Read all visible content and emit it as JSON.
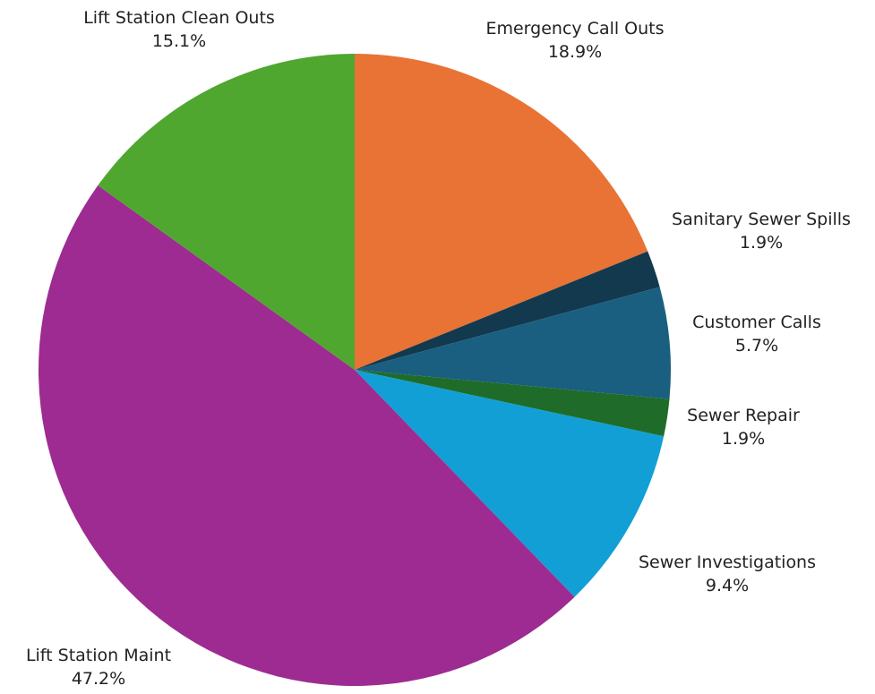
{
  "chart_data": {
    "type": "pie",
    "title": "",
    "legend": "none",
    "start_angle_deg": 0,
    "direction": "clockwise",
    "slices": [
      {
        "label": "Emergency Call Outs",
        "value": 18.9,
        "display": "18.9%",
        "color": "#E87334"
      },
      {
        "label": "Sanitary Sewer Spills",
        "value": 1.9,
        "display": "1.9%",
        "color": "#13394F"
      },
      {
        "label": "Customer Calls",
        "value": 5.7,
        "display": "5.7%",
        "color": "#1A5F80"
      },
      {
        "label": "Sewer Repair",
        "value": 1.9,
        "display": "1.9%",
        "color": "#1F6C2A"
      },
      {
        "label": "Sewer Investigations",
        "value": 9.4,
        "display": "9.4%",
        "color": "#129FD5"
      },
      {
        "label": "Lift Station Maint",
        "value": 47.2,
        "display": "47.2%",
        "color": "#9D2B91"
      },
      {
        "label": "Lift Station Clean Outs",
        "value": 15.1,
        "display": "15.1%",
        "color": "#4FA72F"
      }
    ]
  }
}
